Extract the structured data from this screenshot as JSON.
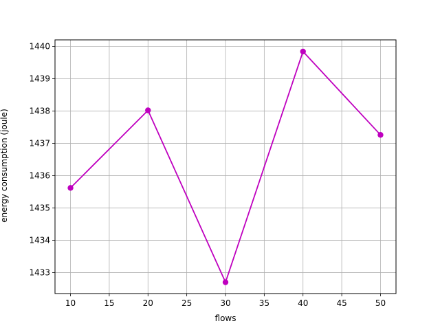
{
  "chart_data": {
    "type": "line",
    "title": "",
    "xlabel": "flows",
    "ylabel": "energy consumption (joule)",
    "x": [
      10,
      20,
      30,
      40,
      50
    ],
    "series": [
      {
        "values": [
          1435.62,
          1438.02,
          1432.7,
          1439.84,
          1437.26
        ],
        "color": "#bf00bf",
        "marker": "circle"
      }
    ],
    "xlim": [
      8,
      52
    ],
    "ylim": [
      1432.35,
      1440.2
    ],
    "xticks": [
      10,
      15,
      20,
      25,
      30,
      35,
      40,
      45,
      50
    ],
    "yticks": [
      1433,
      1434,
      1435,
      1436,
      1437,
      1438,
      1439,
      1440
    ],
    "grid": true,
    "legend": "none"
  }
}
